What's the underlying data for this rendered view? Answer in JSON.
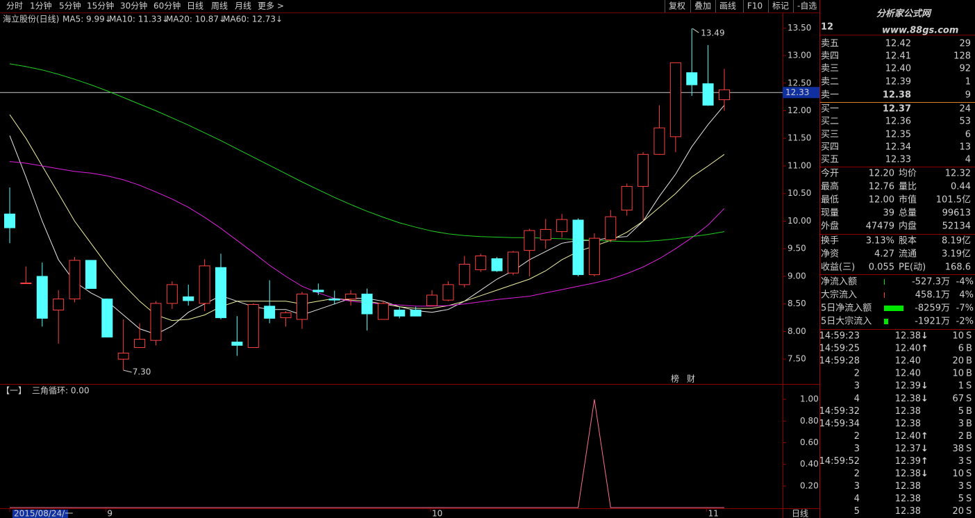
{
  "toolbar": {
    "tabs": [
      "分时",
      "1分钟",
      "5分钟",
      "15分钟",
      "30分钟",
      "60分钟",
      "日线",
      "周线",
      "月线",
      "更多 >"
    ],
    "active": 6,
    "tools": [
      "复权",
      "叠加",
      "画线",
      "F10",
      "标记",
      "-自选"
    ]
  },
  "chart_data": [
    {
      "type": "candlestick",
      "title": "海立股份(日线)",
      "categories": [
        "2015/08/24/一",
        null,
        null,
        null,
        null,
        null,
        "9",
        null,
        null,
        null,
        null,
        null,
        null,
        null,
        null,
        null,
        null,
        null,
        null,
        null,
        null,
        null,
        null,
        null,
        null,
        null,
        "10",
        null,
        null,
        null,
        null,
        null,
        null,
        null,
        null,
        null,
        null,
        null,
        null,
        null,
        null,
        null,
        null,
        "11",
        null
      ],
      "open": [
        10.13,
        8.88,
        9.0,
        8.39,
        8.59,
        9.29,
        8.59,
        7.5,
        7.71,
        7.84,
        8.51,
        8.63,
        8.51,
        9.16,
        7.81,
        7.71,
        8.46,
        8.25,
        8.22,
        8.75,
        8.59,
        8.59,
        8.68,
        8.22,
        8.39,
        8.39,
        8.47,
        8.57,
        8.85,
        9.12,
        9.32,
        9.06,
        9.47,
        9.66,
        9.81,
        10.02,
        9.03,
        9.66,
        10.2,
        10.63,
        11.21,
        11.53,
        12.69,
        12.49,
        12.2
      ],
      "high": [
        10.61,
        9.18,
        9.25,
        8.75,
        9.35,
        9.29,
        8.6,
        8.22,
        8.15,
        8.55,
        8.91,
        8.85,
        9.31,
        9.41,
        8.28,
        8.51,
        8.93,
        8.37,
        8.72,
        8.87,
        8.74,
        8.75,
        8.78,
        8.56,
        8.44,
        8.45,
        8.75,
        8.91,
        9.37,
        9.41,
        9.35,
        9.46,
        9.86,
        10.04,
        10.13,
        10.05,
        9.78,
        10.2,
        10.68,
        11.25,
        12.1,
        12.87,
        13.49,
        13.19,
        12.76
      ],
      "low": [
        9.6,
        8.88,
        8.09,
        7.78,
        8.53,
        8.78,
        7.9,
        7.3,
        7.71,
        7.75,
        8.41,
        8.47,
        8.37,
        8.22,
        7.56,
        7.71,
        8.15,
        8.09,
        8.05,
        8.66,
        8.49,
        8.47,
        8.02,
        8.22,
        8.24,
        8.28,
        8.47,
        8.55,
        8.8,
        9.08,
        9.08,
        9.02,
        9.0,
        9.5,
        9.7,
        9.0,
        9.0,
        9.62,
        10.1,
        10.02,
        11.2,
        11.25,
        12.27,
        12.09,
        12.0
      ],
      "close": [
        9.88,
        8.88,
        8.24,
        8.59,
        9.29,
        8.78,
        7.9,
        7.61,
        7.86,
        8.51,
        8.85,
        8.56,
        9.19,
        8.25,
        7.75,
        8.49,
        8.24,
        8.34,
        8.68,
        8.72,
        8.57,
        8.68,
        8.32,
        8.51,
        8.28,
        8.28,
        8.66,
        8.85,
        9.22,
        9.37,
        9.1,
        9.44,
        9.83,
        9.85,
        10.03,
        9.03,
        9.69,
        10.08,
        10.63,
        11.21,
        11.69,
        12.87,
        12.47,
        12.1,
        12.38
      ],
      "up_color": "#ff4040",
      "down_color": "#54ffff",
      "series": [
        {
          "name": "MA5: 9.99↓",
          "color": "#e8e8e8",
          "values": [
            11.55,
            10.8,
            10.0,
            9.3,
            8.9,
            8.7,
            8.55,
            8.3,
            8.05,
            7.95,
            8.1,
            8.35,
            8.5,
            8.65,
            8.55,
            8.45,
            8.4,
            8.4,
            8.3,
            8.4,
            8.5,
            8.6,
            8.6,
            8.55,
            8.45,
            8.38,
            8.35,
            8.4,
            8.55,
            8.75,
            8.95,
            9.1,
            9.3,
            9.45,
            9.6,
            9.65,
            9.65,
            9.7,
            9.72,
            10.0,
            10.45,
            10.85,
            11.35,
            11.75,
            12.1
          ]
        },
        {
          "name": "MA10: 11.33↓",
          "color": "#f0f0a0",
          "values": [
            11.93,
            11.5,
            11.0,
            10.5,
            10.0,
            9.6,
            9.2,
            8.85,
            8.55,
            8.3,
            8.2,
            8.22,
            8.3,
            8.45,
            8.55,
            8.55,
            8.55,
            8.55,
            8.5,
            8.55,
            8.6,
            8.57,
            8.55,
            8.5,
            8.45,
            8.42,
            8.42,
            8.47,
            8.55,
            8.65,
            8.75,
            8.85,
            8.95,
            9.1,
            9.3,
            9.45,
            9.55,
            9.65,
            9.8,
            10.0,
            10.25,
            10.5,
            10.8,
            11.0,
            11.21
          ]
        },
        {
          "name": "MA20: 10.87↓",
          "color": "#e020e0",
          "values": [
            11.08,
            11.05,
            11.0,
            10.95,
            10.9,
            10.87,
            10.82,
            10.75,
            10.65,
            10.53,
            10.4,
            10.25,
            10.07,
            9.87,
            9.65,
            9.43,
            9.2,
            9.0,
            8.82,
            8.7,
            8.6,
            8.55,
            8.52,
            8.5,
            8.48,
            8.46,
            8.46,
            8.47,
            8.5,
            8.54,
            8.58,
            8.61,
            8.64,
            8.7,
            8.76,
            8.82,
            8.88,
            8.95,
            9.05,
            9.17,
            9.32,
            9.5,
            9.7,
            9.93,
            10.23
          ]
        },
        {
          "name": "MA60: 12.73↓",
          "color": "#20d020",
          "values": [
            12.85,
            12.8,
            12.74,
            12.66,
            12.57,
            12.47,
            12.36,
            12.24,
            12.12,
            12.0,
            11.87,
            11.74,
            11.6,
            11.46,
            11.31,
            11.16,
            11.01,
            10.86,
            10.71,
            10.57,
            10.43,
            10.3,
            10.18,
            10.07,
            9.97,
            9.89,
            9.82,
            9.77,
            9.74,
            9.72,
            9.71,
            9.7,
            9.7,
            9.69,
            9.68,
            9.67,
            9.65,
            9.64,
            9.63,
            9.63,
            9.65,
            9.68,
            9.72,
            9.76,
            9.81
          ]
        }
      ],
      "ylim": [
        7.05,
        13.78
      ],
      "yticks": [
        {
          "value": 7.5,
          "label": "7.50"
        },
        {
          "value": 8,
          "label": "8.00"
        },
        {
          "value": 8.5,
          "label": "8.50"
        },
        {
          "value": 9,
          "label": "9.00"
        },
        {
          "value": 9.5,
          "label": "9.50"
        },
        {
          "value": 10,
          "label": "10.00"
        },
        {
          "value": 10.5,
          "label": "10.50"
        },
        {
          "value": 11,
          "label": "11.00"
        },
        {
          "value": 11.5,
          "label": "11.50"
        },
        {
          "value": 12,
          "label": "12.00"
        },
        {
          "value": 12.5,
          "label": "12.50"
        },
        {
          "value": 13,
          "label": "13.00"
        },
        {
          "value": 13.5,
          "label": "13.50"
        }
      ],
      "high_label": 13.49,
      "low_label": {
        "value": 7.3,
        "label": "7.30"
      },
      "price_line": 12.33,
      "badges": [
        "榜",
        "财"
      ],
      "x_axis_end": "日线"
    },
    {
      "type": "line",
      "prefix": "【一】",
      "title": "三角循环: 0.00",
      "color": "#ff7090",
      "values": [
        0,
        0,
        0,
        0,
        0,
        0,
        0,
        0,
        0,
        0,
        0,
        0,
        0,
        0,
        0,
        0,
        0,
        0,
        0,
        0,
        0,
        0,
        0,
        0,
        0,
        0,
        0,
        0,
        0,
        0,
        0,
        0,
        0,
        0,
        0,
        0,
        1,
        0,
        0,
        0,
        0,
        0,
        0,
        0,
        0
      ],
      "ylim": [
        0,
        1.13
      ],
      "yticks": [
        {
          "value": 0.2,
          "label": "0.20"
        },
        {
          "value": 0.4,
          "label": "0.40"
        },
        {
          "value": 0.6,
          "label": "0.60"
        },
        {
          "value": 0.8,
          "label": "0.80"
        },
        {
          "value": 1,
          "label": "1.00"
        }
      ]
    }
  ],
  "quote": {
    "price_head": "12",
    "watermark": "分析家公式网",
    "watermark_url": "www.88gs.com",
    "asks": [
      {
        "label": "卖五",
        "price": "12.42",
        "volume": "29",
        "color": "red"
      },
      {
        "label": "卖四",
        "price": "12.41",
        "volume": "128",
        "color": "red"
      },
      {
        "label": "卖三",
        "price": "12.40",
        "volume": "92",
        "color": "red"
      },
      {
        "label": "卖二",
        "price": "12.39",
        "volume": "1",
        "color": "red"
      },
      {
        "label": "卖一",
        "price": "12.38",
        "volume": "9",
        "color": "red"
      }
    ],
    "bids": [
      {
        "label": "买一",
        "price": "12.37",
        "volume": "24",
        "color": "red"
      },
      {
        "label": "买二",
        "price": "12.36",
        "volume": "53",
        "color": "red"
      },
      {
        "label": "买三",
        "price": "12.35",
        "volume": "6",
        "color": "red"
      },
      {
        "label": "买四",
        "price": "12.34",
        "volume": "13",
        "color": "red"
      },
      {
        "label": "买五",
        "price": "12.33",
        "volume": "4",
        "color": "white"
      }
    ],
    "stats": [
      {
        "label": "今开",
        "value": "12.20",
        "color": "red"
      },
      {
        "label": "均价",
        "value": "12.32",
        "color": "white"
      },
      {
        "label": "最高",
        "value": "12.76",
        "color": "red"
      },
      {
        "label": "量比",
        "value": "0.44",
        "color": "green"
      },
      {
        "label": "最低",
        "value": "12.00",
        "color": "green"
      },
      {
        "label": "市值",
        "value": "101.5亿",
        "color": "white"
      },
      {
        "label": "现量",
        "value": "39",
        "color": "yellow"
      },
      {
        "label": "总量",
        "value": "99613",
        "color": "white"
      },
      {
        "label": "外盘",
        "value": "47479",
        "color": "red"
      },
      {
        "label": "内盘",
        "value": "52134",
        "color": "green"
      }
    ],
    "fundamentals": [
      {
        "label": "换手",
        "value": "3.13%"
      },
      {
        "label": "股本",
        "value": "8.19亿"
      },
      {
        "label": "净资",
        "value": "4.27"
      },
      {
        "label": "流通",
        "value": "3.19亿"
      },
      {
        "label": "收益(三)",
        "value": "0.055"
      },
      {
        "label": "PE(动)",
        "value": "168.6"
      }
    ],
    "flows": [
      {
        "label": "净流入额",
        "value": "-527.3万",
        "pct": "-4%",
        "color": "green"
      },
      {
        "label": "大宗流入",
        "value": "458.1万",
        "pct": "4%",
        "color": "red"
      },
      {
        "label": "5日净流入额",
        "value": "-8259万",
        "pct": "-7%",
        "color": "green"
      },
      {
        "label": "5日大宗流入",
        "value": "-1921万",
        "pct": "-2%",
        "color": "green"
      }
    ],
    "ticks": [
      {
        "time": "14:59:23",
        "price": "12.38",
        "arrow": "↓",
        "volume": "10",
        "side": "S",
        "volume_color": "yellow"
      },
      {
        "time": "14:59:25",
        "price": "12.40",
        "arrow": "↑",
        "volume": "6",
        "side": "B",
        "volume_color": "red"
      },
      {
        "time": "14:59:28",
        "price": "12.40",
        "volume": "20",
        "side": "B",
        "volume_color": "yellow"
      },
      {
        "time": "2",
        "price": "12.40",
        "volume": "10",
        "side": "B",
        "volume_color": "yellow"
      },
      {
        "time": "3",
        "price": "12.39",
        "arrow": "↓",
        "volume": "1",
        "side": "S",
        "volume_color": "green"
      },
      {
        "time": "4",
        "price": "12.38",
        "arrow": "↓",
        "volume": "67",
        "side": "S",
        "volume_color": "green"
      },
      {
        "time": "14:59:32",
        "price": "12.38",
        "volume": "5",
        "side": "B",
        "volume_color": "red"
      },
      {
        "time": "14:59:34",
        "price": "12.38",
        "volume": "3",
        "side": "B",
        "volume_color": "red"
      },
      {
        "time": "2",
        "price": "12.40",
        "arrow": "↑",
        "volume": "2",
        "side": "B",
        "volume_color": "red"
      },
      {
        "time": "3",
        "price": "12.37",
        "arrow": "↓",
        "volume": "38",
        "side": "S",
        "volume_color": "yellow"
      },
      {
        "time": "14:59:52",
        "price": "12.39",
        "arrow": "↑",
        "volume": "3",
        "side": "S",
        "volume_color": "yellow"
      },
      {
        "time": "2",
        "price": "12.38",
        "arrow": "↓",
        "volume": "10",
        "side": "S",
        "volume_color": "green"
      },
      {
        "time": "3",
        "price": "12.38",
        "volume": "3",
        "side": "S",
        "volume_color": "green"
      },
      {
        "time": "4",
        "price": "12.38",
        "volume": "5",
        "side": "S",
        "volume_color": "green"
      },
      {
        "time": "5",
        "price": "12.38",
        "volume": "20",
        "side": "S",
        "volume_color": "yellow"
      }
    ]
  }
}
